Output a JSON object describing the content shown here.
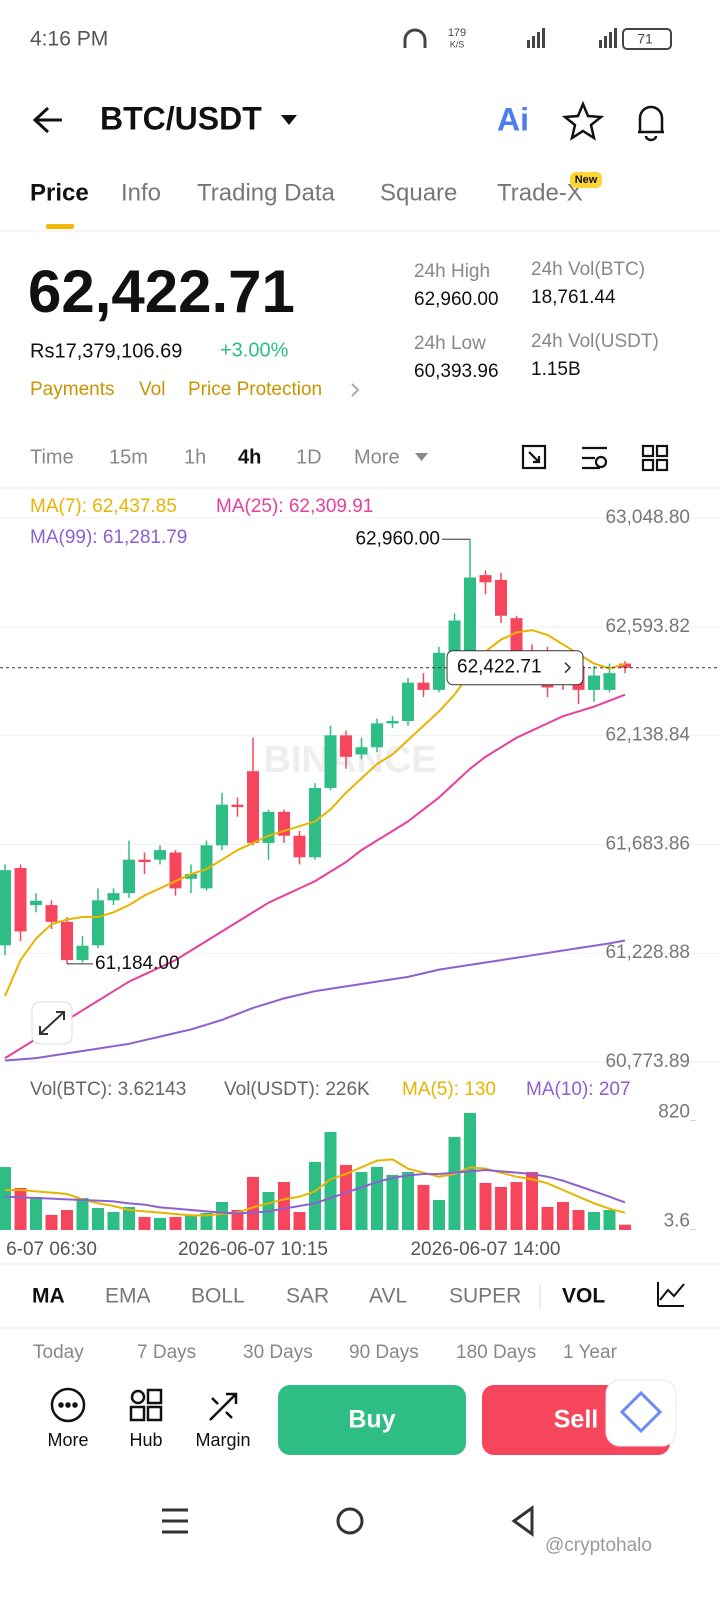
{
  "status_bar": {
    "time": "4:16 PM",
    "speed": "179",
    "speed_unit": "K/S",
    "battery": "71"
  },
  "header": {
    "pair": "BTC/USDT",
    "ai": "Ai"
  },
  "tabs": [
    "Price",
    "Info",
    "Trading Data",
    "Square",
    "Trade-X"
  ],
  "new_badge": "New",
  "price": {
    "last": "62,422.71",
    "local": "Rs17,379,106.69",
    "change": "+3.00%",
    "links": [
      "Payments",
      "Vol",
      "Price Protection"
    ]
  },
  "stats": [
    {
      "label": "24h High",
      "value": "62,960.00"
    },
    {
      "label": "24h Vol(BTC)",
      "value": "18,761.44"
    },
    {
      "label": "24h Low",
      "value": "60,393.96"
    },
    {
      "label": "24h Vol(USDT)",
      "value": "1.15B"
    }
  ],
  "timeframes": [
    "Time",
    "15m",
    "1h",
    "4h",
    "1D",
    "More"
  ],
  "chart_data": {
    "type": "candlestick",
    "watermark": "BINANCE",
    "up_color": "#2ebd85",
    "down_color": "#f6465d",
    "categories": [
      null,
      null,
      null,
      "6-07 06:30",
      null,
      null,
      null,
      null,
      null,
      null,
      null,
      null,
      null,
      null,
      null,
      null,
      "2026-06-07 10:15",
      null,
      null,
      null,
      null,
      null,
      null,
      null,
      null,
      null,
      null,
      null,
      null,
      null,
      null,
      "2026-06-07 14:00",
      null,
      null,
      null,
      null,
      null,
      null,
      null,
      null,
      null
    ],
    "open": [
      61262,
      61585,
      61430,
      61430,
      61360,
      61200,
      61262,
      61450,
      61480,
      61620,
      61620,
      61650,
      61540,
      61500,
      61680,
      61850,
      61990,
      61690,
      61820,
      61720,
      61630,
      61920,
      62140,
      62060,
      62090,
      62190,
      62200,
      62360,
      62330,
      62485,
      62480,
      62810,
      62790,
      62630,
      62490,
      62480,
      62460,
      62430,
      62330,
      62330,
      62440
    ],
    "high": [
      61600,
      61600,
      61480,
      61450,
      61380,
      61300,
      61500,
      61500,
      61700,
      61650,
      61680,
      61660,
      61600,
      61700,
      61900,
      61880,
      62130,
      61830,
      61830,
      61740,
      61940,
      62180,
      62160,
      62130,
      62210,
      62220,
      62380,
      62400,
      62510,
      62650,
      62960,
      62830,
      62820,
      62640,
      62520,
      62510,
      62490,
      62450,
      62430,
      62440,
      62450
    ],
    "low": [
      61220,
      61280,
      61400,
      61330,
      61184,
      61190,
      61250,
      61430,
      61460,
      61560,
      61600,
      61470,
      61480,
      61490,
      61660,
      61800,
      61680,
      61620,
      61690,
      61600,
      61620,
      61910,
      62000,
      62040,
      62070,
      62170,
      62180,
      62300,
      62320,
      62470,
      62470,
      62730,
      62610,
      62420,
      62440,
      62300,
      62330,
      62270,
      62280,
      62320,
      62400
    ],
    "close": [
      61576,
      61320,
      61448,
      61360,
      61200,
      61260,
      61450,
      61480,
      61620,
      61610,
      61660,
      61500,
      61560,
      61680,
      61850,
      61840,
      61690,
      61820,
      61720,
      61630,
      61920,
      62140,
      62050,
      62090,
      62190,
      62200,
      62360,
      62330,
      62485,
      62620,
      62800,
      62780,
      62640,
      62460,
      62470,
      62340,
      62370,
      62330,
      62390,
      62400,
      62422.71
    ],
    "series": [
      {
        "name": "MA(7): 62,437.85",
        "color": "#e8b400",
        "values": [
          61050,
          61200,
          61290,
          61350,
          61370,
          61380,
          61380,
          61400,
          61430,
          61470,
          61500,
          61530,
          61560,
          61580,
          61620,
          61660,
          61690,
          61720,
          61740,
          61760,
          61780,
          61830,
          61900,
          61960,
          62020,
          62060,
          62120,
          62180,
          62240,
          62310,
          62400,
          62490,
          62540,
          62570,
          62580,
          62560,
          62520,
          62480,
          62440,
          62420,
          62437.85
        ]
      },
      {
        "name": "MA(25): 62,309.91",
        "color": "#e83e9c",
        "values": [
          60790,
          60830,
          60870,
          60910,
          60950,
          60990,
          61030,
          61070,
          61110,
          61140,
          61170,
          61200,
          61240,
          61280,
          61320,
          61360,
          61400,
          61440,
          61470,
          61500,
          61530,
          61570,
          61610,
          61660,
          61700,
          61740,
          61780,
          61830,
          61880,
          61940,
          62000,
          62050,
          62090,
          62130,
          62160,
          62190,
          62220,
          62240,
          62260,
          62285,
          62309.91
        ]
      },
      {
        "name": "MA(99): 61,281.79",
        "color": "#8e5fd0",
        "values": [
          60780,
          60785,
          60790,
          60800,
          60810,
          60820,
          60830,
          60840,
          60850,
          60865,
          60880,
          60895,
          60910,
          60930,
          60950,
          60975,
          61000,
          61020,
          61040,
          61055,
          61070,
          61080,
          61090,
          61100,
          61110,
          61120,
          61130,
          61145,
          61160,
          61170,
          61180,
          61190,
          61200,
          61210,
          61220,
          61230,
          61240,
          61250,
          61260,
          61270,
          61281.79
        ]
      }
    ],
    "ylim": [
      60698.6,
      63165.9
    ],
    "yticks": [
      {
        "value": 60773.89,
        "label": "60,773.89"
      },
      {
        "value": 61228.88,
        "label": "61,228.88"
      },
      {
        "value": 61683.86,
        "label": "61,683.86"
      },
      {
        "value": 62138.84,
        "label": "62,138.84"
      },
      {
        "value": 62593.82,
        "label": "62,593.82"
      },
      {
        "value": 63048.8,
        "label": "63,048.80"
      }
    ],
    "grid": true,
    "last_price": {
      "value": 62422.71,
      "label": "62,422.71"
    },
    "annotations": [
      {
        "value": 62960,
        "label": "62,960.00",
        "index": 30
      },
      {
        "value": 61184,
        "label": "61,184.00",
        "index": 4
      }
    ],
    "volume": {
      "legend": [
        "Vol(BTC): 3.62143",
        "Vol(USDT): 226K"
      ],
      "values": [
        472,
        315,
        248,
        113,
        150,
        240,
        165,
        135,
        173,
        98,
        90,
        98,
        113,
        128,
        210,
        150,
        398,
        285,
        360,
        135,
        510,
        735,
        488,
        435,
        473,
        413,
        435,
        338,
        225,
        698,
        878,
        353,
        323,
        360,
        435,
        173,
        210,
        150,
        135,
        150,
        40
      ],
      "series": [
        {
          "name": "MA(5): 130",
          "color": "#e8b400",
          "values": [
            300,
            300,
            290,
            280,
            270,
            230,
            200,
            180,
            150,
            140,
            130,
            120,
            110,
            110,
            120,
            130,
            170,
            200,
            230,
            250,
            290,
            380,
            420,
            470,
            520,
            530,
            460,
            430,
            400,
            420,
            470,
            460,
            430,
            400,
            380,
            350,
            300,
            250,
            200,
            160,
            130
          ]
        },
        {
          "name": "MA(10): 207",
          "color": "#8e5fd0",
          "values": [
            250,
            245,
            240,
            235,
            230,
            225,
            220,
            215,
            200,
            190,
            170,
            160,
            150,
            140,
            130,
            125,
            130,
            140,
            160,
            180,
            200,
            240,
            280,
            320,
            360,
            390,
            410,
            420,
            420,
            430,
            440,
            450,
            440,
            430,
            420,
            400,
            370,
            330,
            290,
            250,
            207
          ]
        }
      ],
      "ylim": [
        0,
        900
      ],
      "yticks": [
        3.6,
        820
      ]
    }
  },
  "indicators": [
    "MA",
    "EMA",
    "BOLL",
    "SAR",
    "AVL",
    "SUPER",
    "VOL"
  ],
  "ranges": [
    "Today",
    "7 Days",
    "30 Days",
    "90 Days",
    "180 Days",
    "1 Year"
  ],
  "actions": [
    "More",
    "Hub",
    "Margin"
  ],
  "buy": "Buy",
  "sell": "Sell",
  "watermark": "@cryptohalo"
}
